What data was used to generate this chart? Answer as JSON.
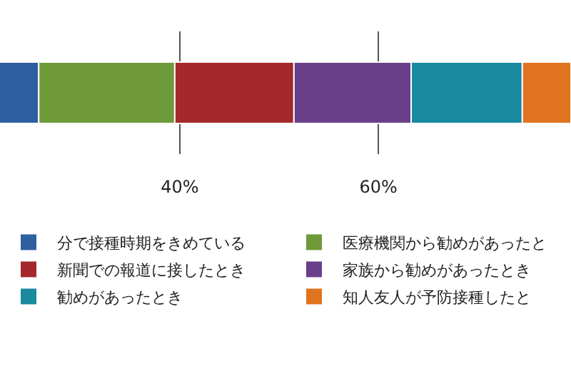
{
  "chart_data": {
    "type": "bar",
    "orientation": "horizontal",
    "categories": [
      null
    ],
    "series": [
      {
        "name": "分で接種時期をきめている",
        "color": "#2e5fa0",
        "values": [
          25.8
        ],
        "base": [
          0
        ]
      },
      {
        "name": "医療機関から勧めがあったと",
        "color": "#6e9a3a",
        "values": [
          13.7
        ],
        "base": [
          25.8
        ]
      },
      {
        "name": "新聞での報道に接したとき",
        "color": "#a5282c",
        "values": [
          12.0
        ],
        "base": [
          39.5
        ]
      },
      {
        "name": "家族から勧めがあったとき",
        "color": "#6a3f8a",
        "values": [
          11.8
        ],
        "base": [
          51.5
        ]
      },
      {
        "name": "勧めがあったとき",
        "color": "#1a8aa0",
        "values": [
          11.2
        ],
        "base": [
          63.3
        ]
      },
      {
        "name": "知人友人が予防接種したと",
        "color": "#e0731f",
        "values": [
          4.9
        ],
        "base": [
          74.5
        ]
      }
    ],
    "xlim": [
      21.9,
      79.4
    ],
    "xticks": [
      {
        "value": 40,
        "label": "40%"
      },
      {
        "value": 60,
        "label": "60%"
      }
    ],
    "grid": "x",
    "legend": "bottom",
    "tick_labels": "x"
  }
}
